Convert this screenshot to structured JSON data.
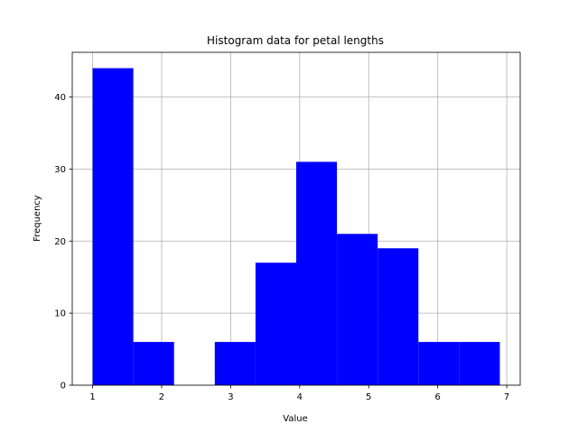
{
  "chart_data": {
    "type": "bar",
    "title": "Histogram data for petal lengths",
    "xlabel": "Value",
    "ylabel": "Frequency",
    "bins": [
      {
        "x0": 1.0,
        "x1": 1.59,
        "count": 44
      },
      {
        "x0": 1.59,
        "x1": 2.18,
        "count": 6
      },
      {
        "x0": 2.18,
        "x1": 2.77,
        "count": 0
      },
      {
        "x0": 2.77,
        "x1": 3.36,
        "count": 6
      },
      {
        "x0": 3.36,
        "x1": 3.95,
        "count": 17
      },
      {
        "x0": 3.95,
        "x1": 4.54,
        "count": 31
      },
      {
        "x0": 4.54,
        "x1": 5.13,
        "count": 21
      },
      {
        "x0": 5.13,
        "x1": 5.72,
        "count": 19
      },
      {
        "x0": 5.72,
        "x1": 6.31,
        "count": 6
      },
      {
        "x0": 6.31,
        "x1": 6.9,
        "count": 6
      }
    ],
    "xlim": [
      0.705,
      7.195
    ],
    "ylim": [
      0,
      46.2
    ],
    "xticks": [
      1,
      2,
      3,
      4,
      5,
      6,
      7
    ],
    "yticks": [
      0,
      10,
      20,
      30,
      40
    ],
    "bar_color": "#0000ff",
    "grid": true
  }
}
